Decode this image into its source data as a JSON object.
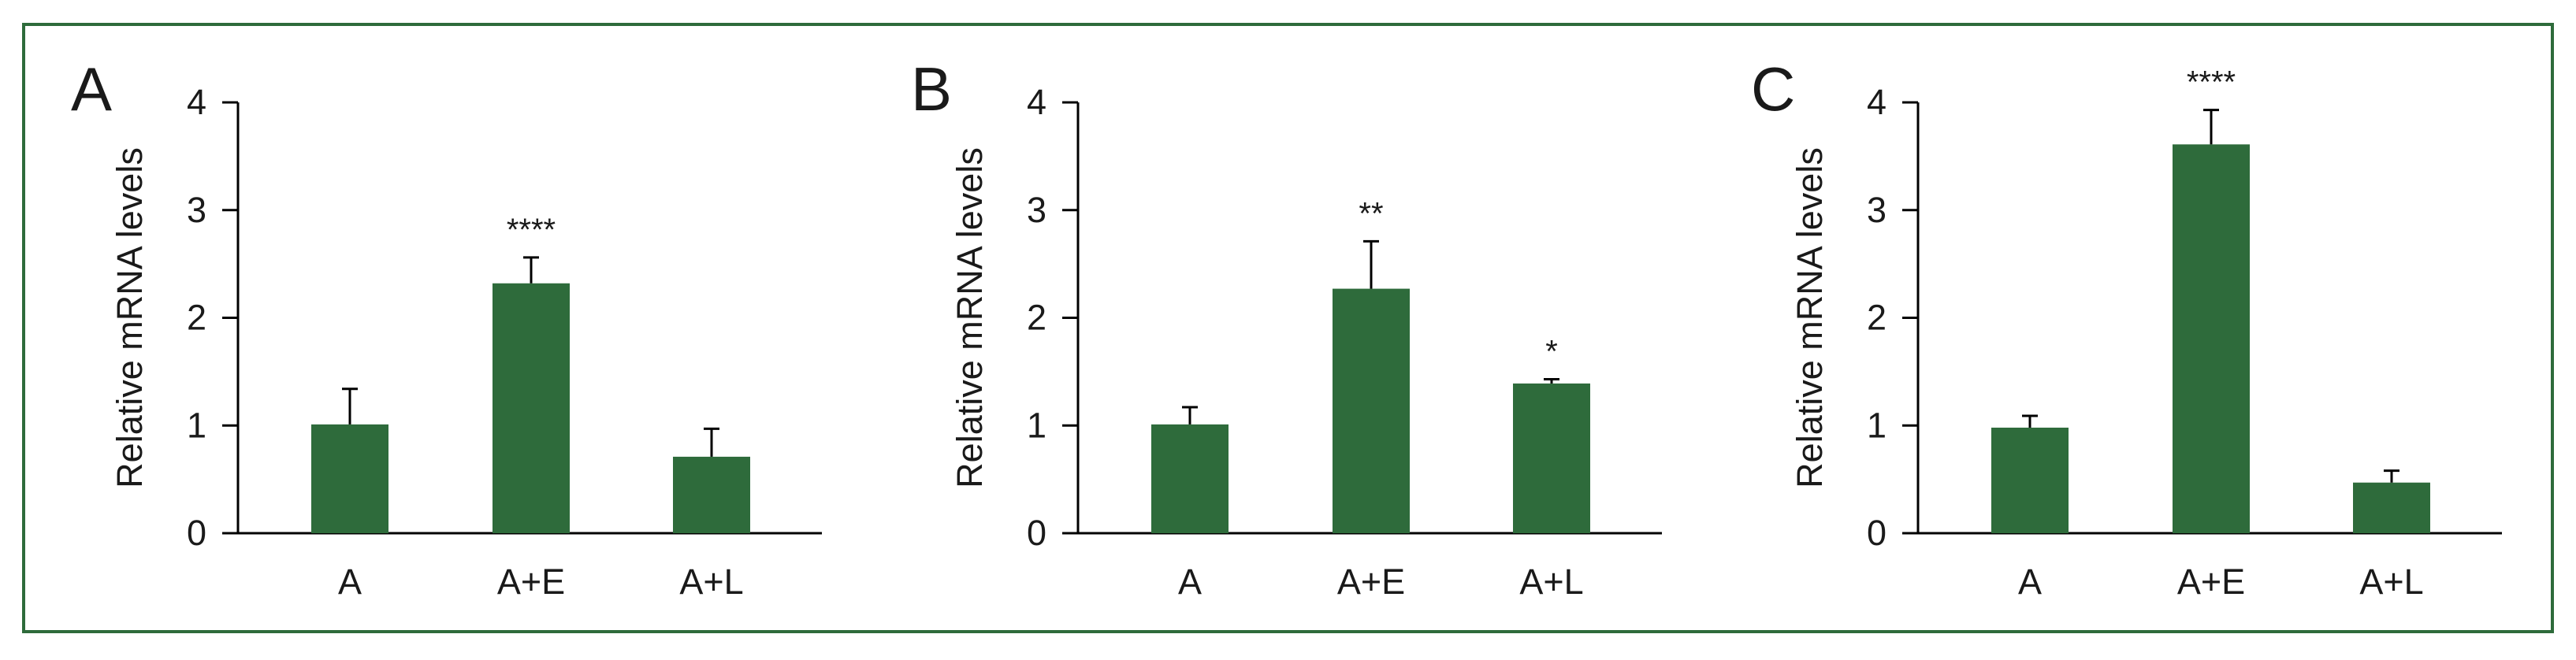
{
  "colors": {
    "bar": "#2e6b3b",
    "frame": "#2e6b3b",
    "axis": "#000000",
    "text": "#1a1a1a"
  },
  "chart_data": [
    {
      "panel_label": "A",
      "type": "bar",
      "categories": [
        "A",
        "A+E",
        "A+L"
      ],
      "values": [
        1.01,
        2.32,
        0.71
      ],
      "errors": [
        0.33,
        0.24,
        0.26
      ],
      "annotations": [
        "",
        "****",
        ""
      ],
      "title": "",
      "xlabel": "",
      "ylabel": "Relative mRNA levels",
      "ylim": [
        0,
        4
      ],
      "yticks": [
        0,
        1,
        2,
        3,
        4
      ],
      "grid": false
    },
    {
      "panel_label": "B",
      "type": "bar",
      "categories": [
        "A",
        "A+E",
        "A+L"
      ],
      "values": [
        1.01,
        2.27,
        1.39
      ],
      "errors": [
        0.16,
        0.44,
        0.04
      ],
      "annotations": [
        "",
        "**",
        "*"
      ],
      "title": "",
      "xlabel": "",
      "ylabel": "Relative mRNA levels",
      "ylim": [
        0,
        4
      ],
      "yticks": [
        0,
        1,
        2,
        3,
        4
      ],
      "grid": false
    },
    {
      "panel_label": "C",
      "type": "bar",
      "categories": [
        "A",
        "A+E",
        "A+L"
      ],
      "values": [
        0.98,
        3.61,
        0.47
      ],
      "errors": [
        0.11,
        0.32,
        0.11
      ],
      "annotations": [
        "",
        "****",
        ""
      ],
      "title": "",
      "xlabel": "",
      "ylabel": "Relative mRNA levels",
      "ylim": [
        0,
        4
      ],
      "yticks": [
        0,
        1,
        2,
        3,
        4
      ],
      "grid": false
    }
  ]
}
